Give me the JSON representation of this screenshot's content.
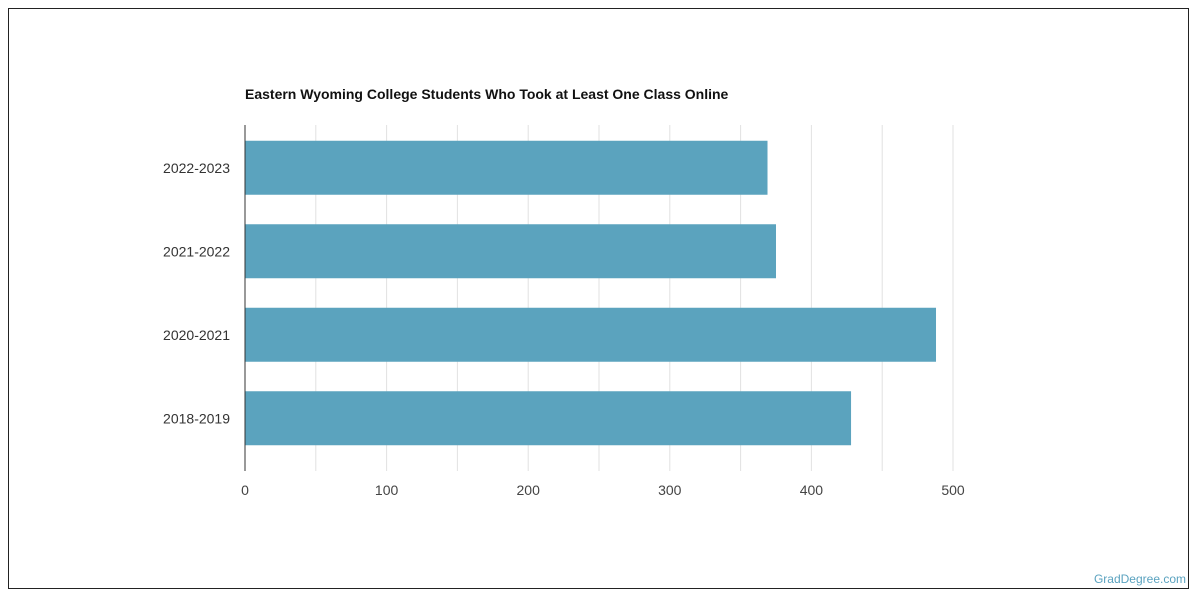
{
  "chart_data": {
    "type": "bar",
    "orientation": "horizontal",
    "title": "Eastern Wyoming College Students Who Took at Least One Class Online",
    "categories": [
      "2022-2023",
      "2021-2022",
      "2020-2021",
      "2018-2019"
    ],
    "values": [
      369,
      375,
      488,
      428
    ],
    "xlim": [
      0,
      500
    ],
    "xticks": [
      0,
      100,
      200,
      300,
      400,
      500
    ],
    "grid": true,
    "bar_color": "#5ba3be"
  },
  "footer": {
    "watermark": "GradDegree.com"
  }
}
